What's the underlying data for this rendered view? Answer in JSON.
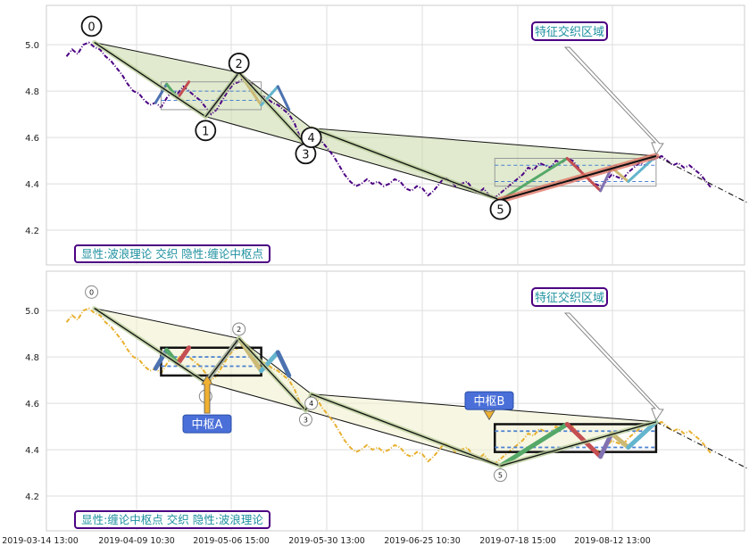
{
  "chart_data": [
    {
      "type": "line",
      "panel": "top",
      "x_ticks": [
        "2019-03-14 13:00",
        "2019-04-09 10:30",
        "2019-05-06 15:00",
        "2019-05-30 13:00",
        "2019-06-25 10:30",
        "2019-07-18 15:00",
        "2019-08-12 13:00"
      ],
      "y_ticks": [
        4.2,
        4.4,
        4.6,
        4.8,
        5.0
      ],
      "ylim": [
        4.05,
        5.17
      ],
      "grid": true,
      "price_color": "#4b0082",
      "price": [
        [
          -2,
          4.95
        ],
        [
          -1,
          4.98
        ],
        [
          0,
          4.96
        ],
        [
          1,
          5.0
        ],
        [
          2,
          5.01
        ],
        [
          3,
          4.99
        ],
        [
          4,
          4.98
        ],
        [
          5,
          4.95
        ],
        [
          6,
          4.93
        ],
        [
          7,
          4.9
        ],
        [
          8,
          4.87
        ],
        [
          9,
          4.83
        ],
        [
          10,
          4.8
        ],
        [
          11,
          4.79
        ],
        [
          12,
          4.76
        ],
        [
          13,
          4.74
        ],
        [
          14,
          4.75
        ],
        [
          15,
          4.73
        ],
        [
          16,
          4.77
        ],
        [
          17,
          4.8
        ],
        [
          18,
          4.79
        ],
        [
          19,
          4.82
        ],
        [
          20,
          4.8
        ],
        [
          21,
          4.78
        ],
        [
          22,
          4.76
        ],
        [
          23,
          4.73
        ],
        [
          24,
          4.7
        ],
        [
          25,
          4.72
        ],
        [
          26,
          4.76
        ],
        [
          27,
          4.8
        ],
        [
          28,
          4.83
        ],
        [
          29,
          4.84
        ],
        [
          30,
          4.86
        ],
        [
          31,
          4.84
        ],
        [
          32,
          4.8
        ],
        [
          33,
          4.78
        ],
        [
          34,
          4.77
        ],
        [
          35,
          4.75
        ],
        [
          36,
          4.74
        ],
        [
          37,
          4.72
        ],
        [
          38,
          4.7
        ],
        [
          39,
          4.66
        ],
        [
          40,
          4.6
        ],
        [
          41,
          4.57
        ],
        [
          42,
          4.6
        ],
        [
          43,
          4.62
        ],
        [
          44,
          4.58
        ],
        [
          45,
          4.55
        ],
        [
          46,
          4.52
        ],
        [
          47,
          4.48
        ],
        [
          48,
          4.44
        ],
        [
          49,
          4.41
        ],
        [
          50,
          4.39
        ],
        [
          51,
          4.4
        ],
        [
          52,
          4.42
        ],
        [
          53,
          4.4
        ],
        [
          54,
          4.41
        ],
        [
          55,
          4.39
        ],
        [
          56,
          4.4
        ],
        [
          57,
          4.42
        ],
        [
          58,
          4.41
        ],
        [
          59,
          4.38
        ],
        [
          60,
          4.37
        ],
        [
          61,
          4.39
        ],
        [
          62,
          4.38
        ],
        [
          63,
          4.35
        ],
        [
          64,
          4.37
        ],
        [
          65,
          4.4
        ],
        [
          66,
          4.43
        ],
        [
          67,
          4.41
        ],
        [
          68,
          4.39
        ],
        [
          69,
          4.4
        ],
        [
          70,
          4.41
        ],
        [
          71,
          4.38
        ],
        [
          72,
          4.36
        ],
        [
          73,
          4.38
        ],
        [
          74,
          4.35
        ],
        [
          75,
          4.34
        ],
        [
          76,
          4.36
        ],
        [
          77,
          4.38
        ],
        [
          78,
          4.4
        ],
        [
          79,
          4.42
        ],
        [
          80,
          4.44
        ],
        [
          81,
          4.47
        ],
        [
          82,
          4.46
        ],
        [
          83,
          4.49
        ],
        [
          84,
          4.48
        ],
        [
          85,
          4.47
        ],
        [
          86,
          4.5
        ],
        [
          87,
          4.49
        ],
        [
          88,
          4.51
        ],
        [
          89,
          4.5
        ],
        [
          90,
          4.47
        ],
        [
          91,
          4.44
        ],
        [
          92,
          4.42
        ],
        [
          93,
          4.4
        ],
        [
          94,
          4.39
        ],
        [
          95,
          4.41
        ],
        [
          96,
          4.44
        ],
        [
          97,
          4.43
        ],
        [
          98,
          4.42
        ],
        [
          99,
          4.45
        ],
        [
          100,
          4.47
        ],
        [
          101,
          4.49
        ],
        [
          102,
          4.48
        ],
        [
          103,
          4.5
        ],
        [
          104,
          4.51
        ],
        [
          105,
          4.52
        ],
        [
          106,
          4.5
        ],
        [
          107,
          4.48
        ],
        [
          108,
          4.49
        ],
        [
          109,
          4.47
        ],
        [
          110,
          4.48
        ],
        [
          111,
          4.46
        ],
        [
          112,
          4.44
        ],
        [
          113,
          4.41
        ],
        [
          114,
          4.38
        ]
      ],
      "ext_line": [
        [
          104,
          4.52
        ],
        [
          135,
          4.14
        ]
      ],
      "strokes": [
        [
          3,
          5.01
        ],
        [
          23,
          4.69
        ],
        [
          29,
          4.88
        ],
        [
          41,
          4.57
        ],
        [
          42,
          4.64
        ],
        [
          76,
          4.33
        ],
        [
          104,
          4.52
        ]
      ],
      "labels": [
        "0",
        "1",
        "2",
        "3",
        "4",
        "5"
      ],
      "seg_colors": [
        "#4c72b0",
        "#55a868",
        "#c44e52",
        "#8172b2",
        "#ccb974",
        "#64b5cd"
      ],
      "title": "显性:波浪理论 交织 隐性:缠论中枢点",
      "annotation": "特征交织区域",
      "title_color": "#1e90a0",
      "box_color": "#4b0082"
    },
    {
      "type": "line",
      "panel": "bottom",
      "x_ticks": [
        "2019-03-14 13:00",
        "2019-04-09 10:30",
        "2019-05-06 15:00",
        "2019-05-30 13:00",
        "2019-06-25 10:30",
        "2019-07-18 15:00",
        "2019-08-12 13:00"
      ],
      "y_ticks": [
        4.2,
        4.4,
        4.6,
        4.8,
        5.0
      ],
      "ylim": [
        4.05,
        5.17
      ],
      "grid": true,
      "price_color": "#e8b030",
      "price": [
        [
          -2,
          4.95
        ],
        [
          -1,
          4.98
        ],
        [
          0,
          4.96
        ],
        [
          1,
          5.0
        ],
        [
          2,
          5.01
        ],
        [
          3,
          4.99
        ],
        [
          4,
          4.98
        ],
        [
          5,
          4.95
        ],
        [
          6,
          4.93
        ],
        [
          7,
          4.9
        ],
        [
          8,
          4.87
        ],
        [
          9,
          4.83
        ],
        [
          10,
          4.8
        ],
        [
          11,
          4.79
        ],
        [
          12,
          4.76
        ],
        [
          13,
          4.74
        ],
        [
          14,
          4.75
        ],
        [
          15,
          4.73
        ],
        [
          16,
          4.77
        ],
        [
          17,
          4.8
        ],
        [
          18,
          4.79
        ],
        [
          19,
          4.82
        ],
        [
          20,
          4.8
        ],
        [
          21,
          4.78
        ],
        [
          22,
          4.76
        ],
        [
          23,
          4.73
        ],
        [
          24,
          4.7
        ],
        [
          25,
          4.72
        ],
        [
          26,
          4.76
        ],
        [
          27,
          4.8
        ],
        [
          28,
          4.83
        ],
        [
          29,
          4.84
        ],
        [
          30,
          4.86
        ],
        [
          31,
          4.84
        ],
        [
          32,
          4.8
        ],
        [
          33,
          4.78
        ],
        [
          34,
          4.77
        ],
        [
          35,
          4.75
        ],
        [
          36,
          4.74
        ],
        [
          37,
          4.72
        ],
        [
          38,
          4.7
        ],
        [
          39,
          4.66
        ],
        [
          40,
          4.6
        ],
        [
          41,
          4.57
        ],
        [
          42,
          4.6
        ],
        [
          43,
          4.62
        ],
        [
          44,
          4.58
        ],
        [
          45,
          4.55
        ],
        [
          46,
          4.52
        ],
        [
          47,
          4.48
        ],
        [
          48,
          4.44
        ],
        [
          49,
          4.41
        ],
        [
          50,
          4.39
        ],
        [
          51,
          4.4
        ],
        [
          52,
          4.42
        ],
        [
          53,
          4.4
        ],
        [
          54,
          4.41
        ],
        [
          55,
          4.39
        ],
        [
          56,
          4.4
        ],
        [
          57,
          4.42
        ],
        [
          58,
          4.41
        ],
        [
          59,
          4.38
        ],
        [
          60,
          4.37
        ],
        [
          61,
          4.39
        ],
        [
          62,
          4.38
        ],
        [
          63,
          4.35
        ],
        [
          64,
          4.37
        ],
        [
          65,
          4.4
        ],
        [
          66,
          4.43
        ],
        [
          67,
          4.41
        ],
        [
          68,
          4.39
        ],
        [
          69,
          4.4
        ],
        [
          70,
          4.41
        ],
        [
          71,
          4.38
        ],
        [
          72,
          4.36
        ],
        [
          73,
          4.38
        ],
        [
          74,
          4.35
        ],
        [
          75,
          4.34
        ],
        [
          76,
          4.36
        ],
        [
          77,
          4.38
        ],
        [
          78,
          4.4
        ],
        [
          79,
          4.42
        ],
        [
          80,
          4.44
        ],
        [
          81,
          4.47
        ],
        [
          82,
          4.46
        ],
        [
          83,
          4.49
        ],
        [
          84,
          4.48
        ],
        [
          85,
          4.47
        ],
        [
          86,
          4.5
        ],
        [
          87,
          4.49
        ],
        [
          88,
          4.51
        ],
        [
          89,
          4.5
        ],
        [
          90,
          4.47
        ],
        [
          91,
          4.44
        ],
        [
          92,
          4.42
        ],
        [
          93,
          4.4
        ],
        [
          94,
          4.39
        ],
        [
          95,
          4.41
        ],
        [
          96,
          4.44
        ],
        [
          97,
          4.43
        ],
        [
          98,
          4.42
        ],
        [
          99,
          4.45
        ],
        [
          100,
          4.47
        ],
        [
          101,
          4.49
        ],
        [
          102,
          4.48
        ],
        [
          103,
          4.5
        ],
        [
          104,
          4.51
        ],
        [
          105,
          4.52
        ],
        [
          106,
          4.5
        ],
        [
          107,
          4.48
        ],
        [
          108,
          4.49
        ],
        [
          109,
          4.47
        ],
        [
          110,
          4.48
        ],
        [
          111,
          4.46
        ],
        [
          112,
          4.44
        ],
        [
          113,
          4.41
        ],
        [
          114,
          4.38
        ]
      ],
      "ext_line": [
        [
          104,
          4.52
        ],
        [
          135,
          4.14
        ]
      ],
      "strokes": [
        [
          3,
          5.01
        ],
        [
          23,
          4.69
        ],
        [
          29,
          4.88
        ],
        [
          41,
          4.57
        ],
        [
          42,
          4.64
        ],
        [
          76,
          4.33
        ],
        [
          104,
          4.52
        ]
      ],
      "labels": [
        "0",
        "1",
        "2",
        "3",
        "4",
        "5"
      ],
      "seg_colors": [
        "#4c72b0",
        "#55a868",
        "#c44e52",
        "#8172b2",
        "#ccb974",
        "#64b5cd"
      ],
      "title": "显性:缠论中枢点 交织 隐性:波浪理论",
      "annotation": "特征交织区域",
      "zs_labels": [
        "中枢A",
        "中枢B"
      ],
      "title_color": "#1e90a0",
      "box_color": "#4b0082",
      "zs_color": "#4a6fd8"
    }
  ]
}
